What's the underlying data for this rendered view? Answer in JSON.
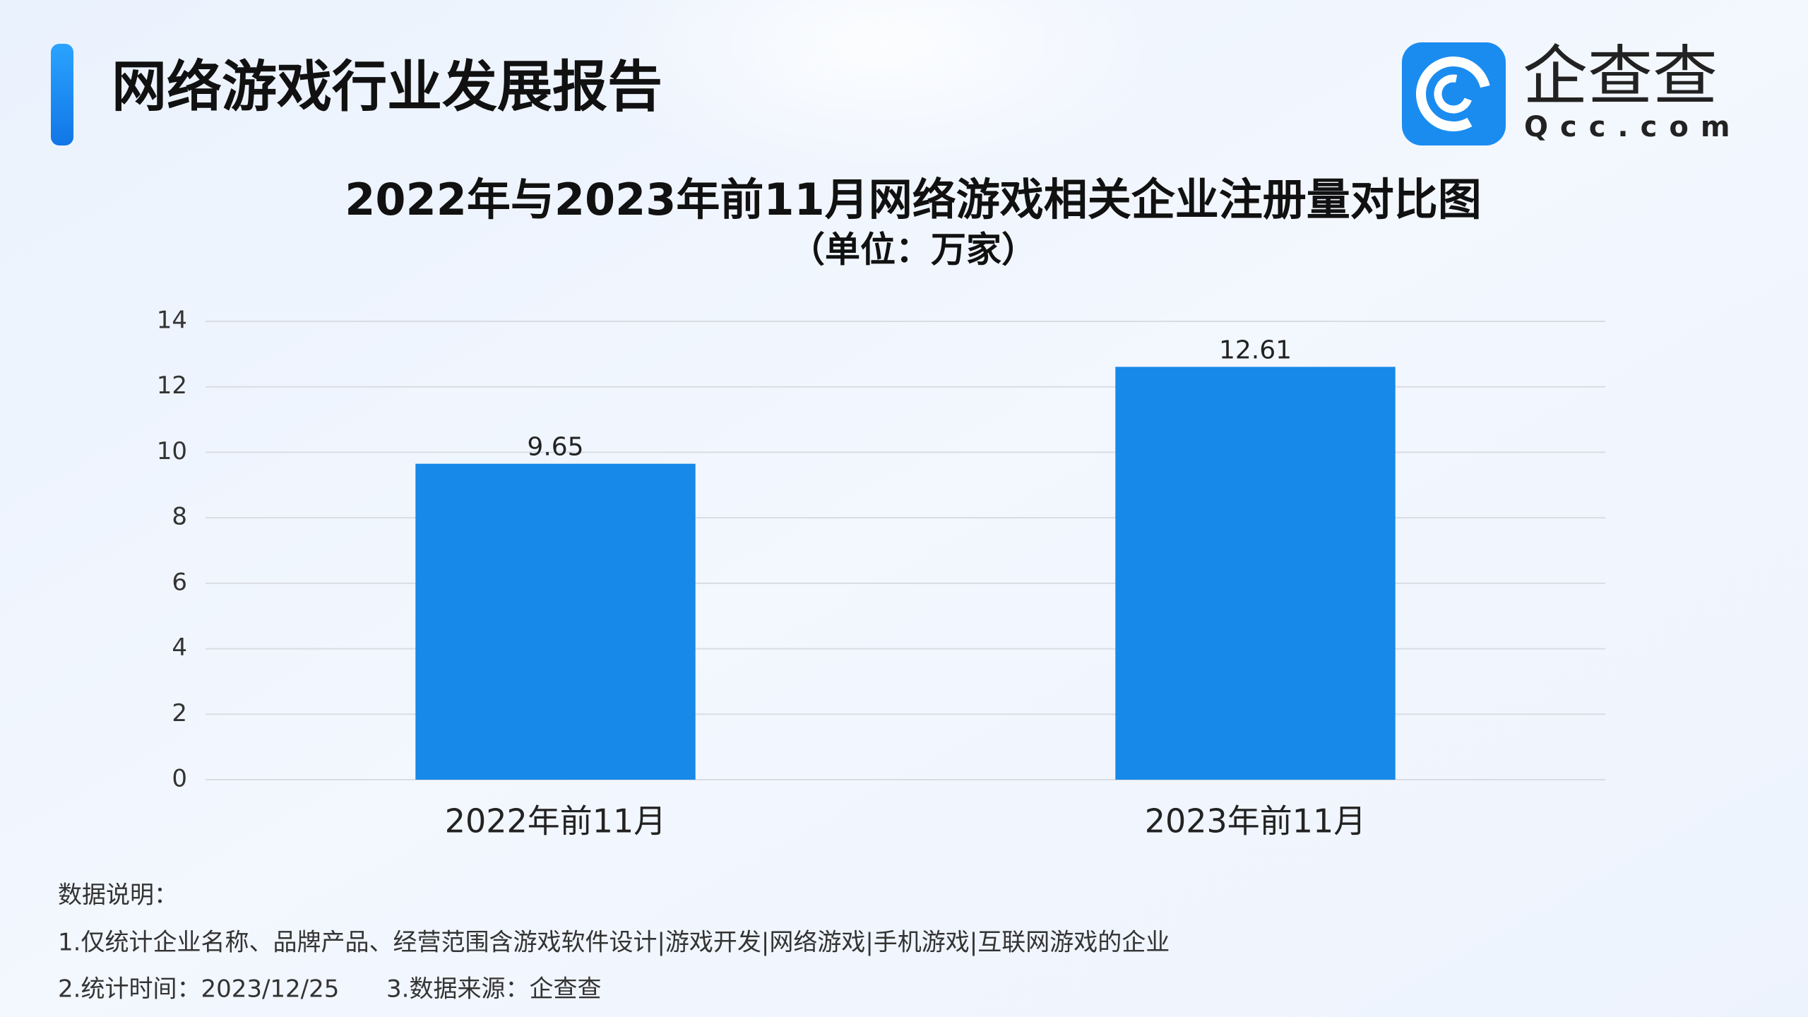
{
  "header": {
    "title": "网络游戏行业发展报告"
  },
  "logo": {
    "name": "企查查",
    "domain": "Qcc.com"
  },
  "chart_data": {
    "type": "bar",
    "title": "2022年与2023年前11月网络游戏相关企业注册量对比图",
    "subtitle": "（单位：万家）",
    "categories": [
      "2022年前11月",
      "2023年前11月"
    ],
    "values": [
      9.65,
      12.61
    ],
    "color": "#1789e8",
    "ylim": [
      0,
      14
    ],
    "yticks": [
      0,
      2,
      4,
      6,
      8,
      10,
      12,
      14
    ],
    "grid": true
  },
  "notes": [
    "数据说明：",
    "1.仅统计企业名称、品牌产品、经营范围含游戏软件设计|游戏开发|网络游戏|手机游戏|互联网游戏的企业",
    "2.统计时间：2023/12/25",
    "3.数据来源：企查查"
  ]
}
